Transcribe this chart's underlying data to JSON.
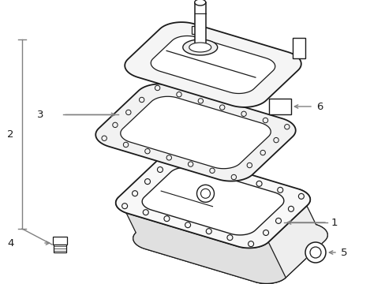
{
  "bg_color": "#ffffff",
  "line_color": "#1a1a1a",
  "leader_color": "#808080",
  "lw_main": 1.3,
  "lw_thin": 0.8,
  "bolt_r": 0.006,
  "label_fs": 9.5
}
